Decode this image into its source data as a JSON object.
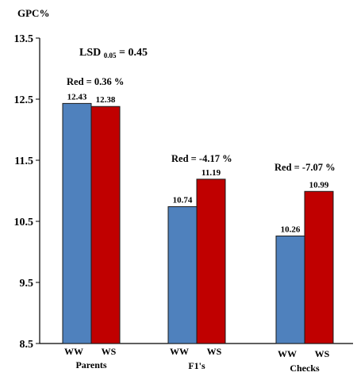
{
  "chart_data": {
    "type": "bar",
    "ylabel": "GPC%",
    "ylim": [
      8.5,
      13.5
    ],
    "yticks": [
      "13.5",
      "12.5",
      "11.5",
      "10.5",
      "9.5",
      "8.5"
    ],
    "categories": [
      "Parents",
      "F1's",
      "Checks"
    ],
    "series": [
      {
        "name": "WW",
        "values": [
          12.43,
          10.74,
          10.26
        ],
        "labels": [
          "12.43",
          "10.74",
          "10.26"
        ],
        "color": "#4f81bd"
      },
      {
        "name": "WS",
        "values": [
          12.38,
          11.19,
          10.99
        ],
        "labels": [
          "12.38",
          "11.19",
          "10.99"
        ],
        "color": "#c00000"
      }
    ],
    "reductions": [
      "Red = 0.36 %",
      "Red = -4.17 %",
      "Red = -7.07 %"
    ],
    "lsd": {
      "prefix": "LSD ",
      "sub": "0.05",
      "suffix": " = 0.45"
    },
    "grid": false
  }
}
